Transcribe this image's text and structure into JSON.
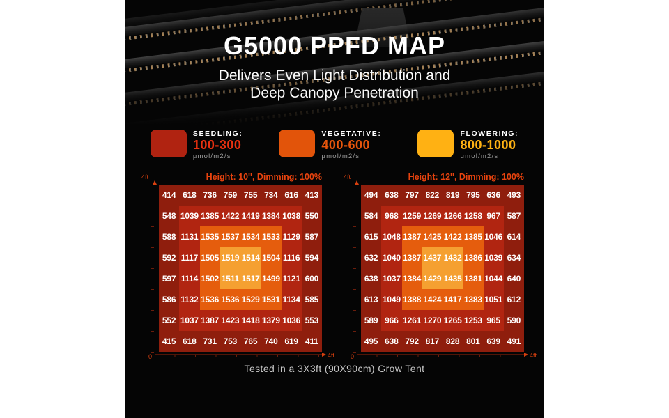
{
  "header": {
    "title": "G5000 PPFD MAP",
    "subtitle_line1": "Delivers Even Light Distribution and",
    "subtitle_line2": "Deep Canopy Penetration"
  },
  "legend": {
    "items": [
      {
        "label": "SEEDLING:",
        "range": "100-300",
        "unit": "μmol/m2/s",
        "swatch_color": "#b02311",
        "range_color": "#e93110"
      },
      {
        "label": "VEGETATIVE:",
        "range": "400-600",
        "unit": "μmol/m2/s",
        "swatch_color": "#e2540a",
        "range_color": "#e8560c"
      },
      {
        "label": "FLOWERING:",
        "range": "800-1000",
        "unit": "μmol/m2/s",
        "swatch_color": "#ffb113",
        "range_color": "#ffb213"
      }
    ]
  },
  "colors": {
    "zone_outer": "#8f1e0d",
    "zone_mid": "#b12511",
    "zone_inner": "#e55d0d",
    "zone_center": "#f5a031",
    "accent_header": "#e8430e",
    "axis_label": "#d8400f"
  },
  "chart_data": [
    {
      "type": "heatmap",
      "title": "Height: 10'', Dimming: 100%",
      "unit": "μmol/m2/s",
      "x_axis": {
        "origin_label": "0",
        "max_label": "4ft"
      },
      "y_axis": {
        "max_label": "4ft"
      },
      "zones_legend": "color zones: outer=seedling red, mid ring=red, inner ring=vegetative orange, center=flowering amber",
      "values": [
        [
          414,
          618,
          736,
          759,
          755,
          734,
          616,
          413
        ],
        [
          548,
          1039,
          1385,
          1422,
          1419,
          1384,
          1038,
          550
        ],
        [
          588,
          1131,
          1535,
          1537,
          1534,
          1533,
          1129,
          587
        ],
        [
          592,
          1117,
          1505,
          1519,
          1514,
          1504,
          1116,
          594
        ],
        [
          597,
          1114,
          1502,
          1511,
          1517,
          1499,
          1121,
          600
        ],
        [
          586,
          1132,
          1536,
          1536,
          1529,
          1531,
          1134,
          585
        ],
        [
          552,
          1037,
          1387,
          1423,
          1418,
          1379,
          1036,
          553
        ],
        [
          415,
          618,
          731,
          753,
          765,
          740,
          619,
          411
        ]
      ]
    },
    {
      "type": "heatmap",
      "title": "Height: 12'', Dimming: 100%",
      "unit": "μmol/m2/s",
      "x_axis": {
        "origin_label": "0",
        "max_label": "4ft"
      },
      "y_axis": {
        "max_label": "4ft"
      },
      "zones_legend": "color zones: outer=seedling red, mid ring=red, inner ring=vegetative orange, center=flowering amber",
      "values": [
        [
          494,
          638,
          797,
          822,
          819,
          795,
          636,
          493
        ],
        [
          584,
          968,
          1259,
          1269,
          1266,
          1258,
          967,
          587
        ],
        [
          615,
          1048,
          1387,
          1425,
          1422,
          1385,
          1046,
          614
        ],
        [
          632,
          1040,
          1387,
          1437,
          1432,
          1386,
          1039,
          634
        ],
        [
          638,
          1037,
          1384,
          1429,
          1435,
          1381,
          1044,
          640
        ],
        [
          613,
          1049,
          1388,
          1424,
          1417,
          1383,
          1051,
          612
        ],
        [
          589,
          966,
          1261,
          1270,
          1265,
          1253,
          965,
          590
        ],
        [
          495,
          638,
          792,
          817,
          828,
          801,
          639,
          491
        ]
      ]
    }
  ],
  "footer": {
    "caption": "Tested in a 3X3ft (90X90cm) Grow Tent"
  }
}
